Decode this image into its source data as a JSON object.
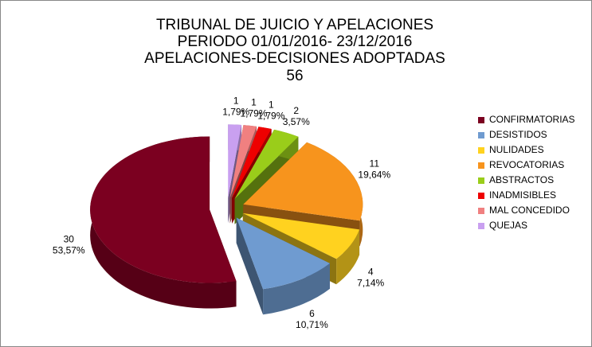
{
  "chart_data": {
    "type": "pie",
    "title": "TRIBUNAL DE JUICIO Y APELACIONES",
    "subtitle": [
      "PERIODO 01/01/2016- 23/12/2016",
      "APELACIONES-DECISIONES ADOPTADAS"
    ],
    "total": 56,
    "categories": [
      "CONFIRMATORIAS",
      "DESISTIDOS",
      "NULIDADES",
      "REVOCATORIAS",
      "ABSTRACTOS",
      "INADMISIBLES",
      "MAL CONCEDIDO",
      "QUEJAS"
    ],
    "values": [
      30,
      6,
      4,
      11,
      2,
      1,
      1,
      1
    ],
    "percent_labels": [
      "53,57%",
      "10,71%",
      "7,14%",
      "19,64%",
      "3,57%",
      "1,79%",
      "1,79%",
      "1,79%"
    ],
    "colors": [
      "#7b0020",
      "#6f9bd0",
      "#ffd21f",
      "#f7941d",
      "#9acd1a",
      "#ee0000",
      "#f08080",
      "#c9a0f0"
    ],
    "legend": "right"
  }
}
